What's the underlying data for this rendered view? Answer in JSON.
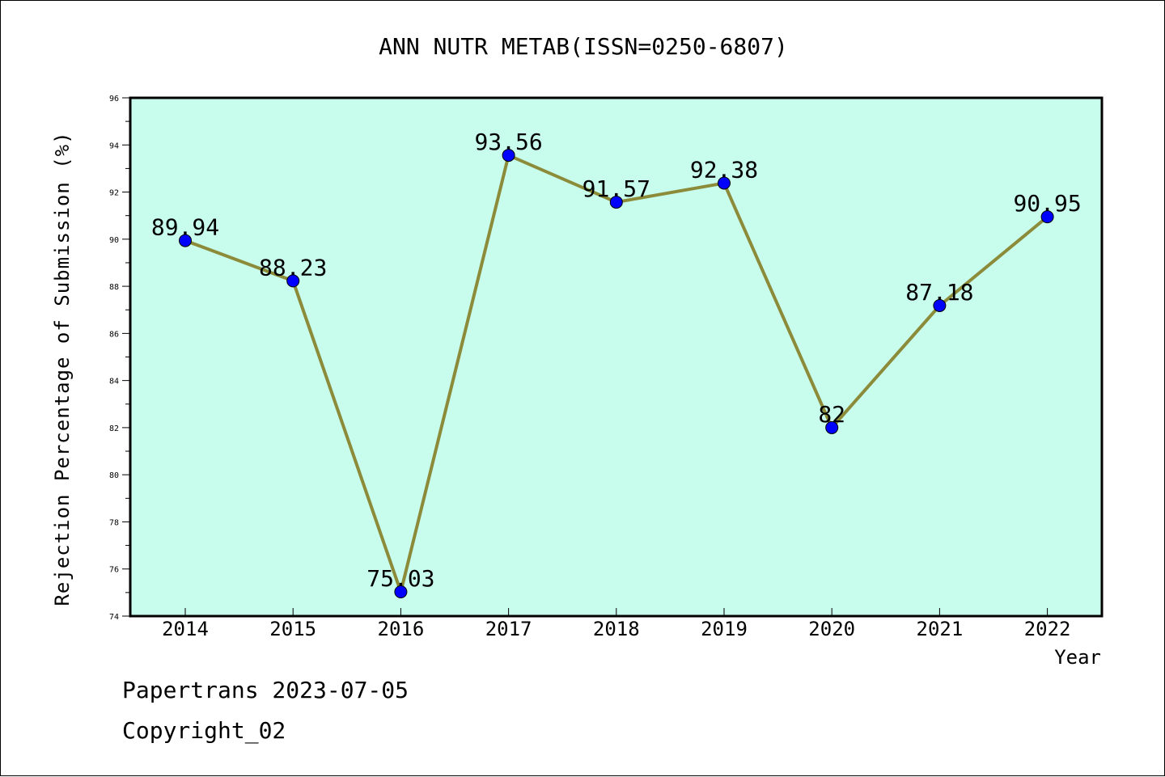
{
  "chart_data": {
    "type": "line",
    "title": "ANN NUTR METAB(ISSN=0250-6807)",
    "xlabel": "Year",
    "ylabel": "Rejection Percentage of Submission (%)",
    "categories": [
      "2014",
      "2015",
      "2016",
      "2017",
      "2018",
      "2019",
      "2020",
      "2021",
      "2022"
    ],
    "series": [
      {
        "values": [
          89.94,
          88.23,
          75.03,
          93.56,
          91.57,
          92.38,
          82,
          87.18,
          90.95
        ],
        "labels": [
          "89.94",
          "88.23",
          "75.03",
          "93.56",
          "91.57",
          "92.38",
          "82",
          "87.18",
          "90.95"
        ]
      }
    ],
    "ylim": [
      74,
      96
    ],
    "yticks": [
      "74",
      "76",
      "78",
      "80",
      "82",
      "84",
      "86",
      "88",
      "90",
      "92",
      "94",
      "96"
    ],
    "grid": false,
    "colors": {
      "plot_background": "#c8fcec",
      "line": "#8b8b3a",
      "marker": "#0000ff"
    }
  },
  "footer": {
    "source": "Papertrans 2023-07-05",
    "copyright": "Copyright_02"
  }
}
